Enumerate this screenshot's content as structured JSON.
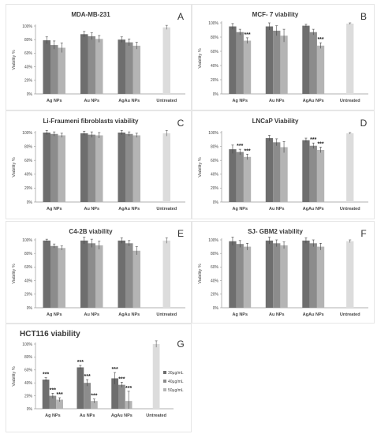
{
  "bar_colors": [
    "#6e6e6e",
    "#8c8c8c",
    "#b4b4b4"
  ],
  "untreated_color": "#dcdcdc",
  "chart_data": [
    {
      "id": "A",
      "letter": "A",
      "type": "bar",
      "title": "MDA-MB-231",
      "ylabel": "Viability %",
      "ylim": [
        0,
        100
      ],
      "yticks": [
        "0%",
        "20%",
        "40%",
        "60%",
        "80%",
        "100%"
      ],
      "categories": [
        "Ag NPs",
        "Au NPs",
        "AgAu NPs",
        "Untreated"
      ],
      "series": [
        {
          "values": [
            79,
            88,
            80,
            null
          ],
          "errors": [
            5,
            4,
            4,
            0
          ]
        },
        {
          "values": [
            72,
            85,
            76,
            null
          ],
          "errors": [
            6,
            5,
            5,
            0
          ]
        },
        {
          "values": [
            68,
            81,
            71,
            null
          ],
          "errors": [
            7,
            5,
            5,
            0
          ]
        }
      ],
      "untreated": {
        "value": 98,
        "error": 3
      },
      "stars": [],
      "grid": false,
      "legend": null
    },
    {
      "id": "B",
      "letter": "B",
      "type": "bar",
      "title": "MCF- 7 viability",
      "ylabel": "Viability %",
      "ylim": [
        0,
        100
      ],
      "yticks": [
        "0%",
        "20%",
        "40%",
        "60%",
        "80%",
        "100%"
      ],
      "categories": [
        "Ag NPs",
        "Au NPs",
        "AgAu NPs",
        "Untreated"
      ],
      "series": [
        {
          "values": [
            95,
            95,
            96,
            null
          ],
          "errors": [
            4,
            5,
            2,
            0
          ]
        },
        {
          "values": [
            87,
            89,
            87,
            null
          ],
          "errors": [
            4,
            7,
            4,
            0
          ]
        },
        {
          "values": [
            75,
            82,
            68,
            null
          ],
          "errors": [
            4,
            9,
            4,
            0
          ]
        }
      ],
      "untreated": {
        "value": 99,
        "error": 1
      },
      "stars": [
        {
          "cat": 0,
          "s": 2,
          "text": "***"
        },
        {
          "cat": 2,
          "s": 2,
          "text": "***"
        }
      ],
      "grid": false,
      "legend": null
    },
    {
      "id": "C",
      "letter": "C",
      "type": "bar",
      "title": "Li-Fraumeni fibroblasts viability",
      "ylabel": "Viability %",
      "ylim": [
        0,
        100
      ],
      "yticks": [
        "0%",
        "20%",
        "40%",
        "60%",
        "80%",
        "100%"
      ],
      "categories": [
        "Ag NPs",
        "Au NPs",
        "AgAu NPs",
        "Untreated"
      ],
      "series": [
        {
          "values": [
            100,
            99,
            100,
            null
          ],
          "errors": [
            3,
            3,
            3,
            0
          ]
        },
        {
          "values": [
            98,
            97,
            98,
            null
          ],
          "errors": [
            3,
            4,
            3,
            0
          ]
        },
        {
          "values": [
            96,
            96,
            96,
            null
          ],
          "errors": [
            3,
            4,
            3,
            0
          ]
        }
      ],
      "untreated": {
        "value": 99,
        "error": 4
      },
      "stars": [],
      "grid": false,
      "legend": null
    },
    {
      "id": "D",
      "letter": "D",
      "type": "bar",
      "title": "LNCaP Viability",
      "ylabel": "Viability %",
      "ylim": [
        0,
        100
      ],
      "yticks": [
        "0%",
        "20%",
        "40%",
        "60%",
        "80%",
        "100%"
      ],
      "categories": [
        "Ag NPs",
        "Au NPs",
        "AgAu NPs",
        "Untreated"
      ],
      "series": [
        {
          "values": [
            76,
            92,
            89,
            null
          ],
          "errors": [
            6,
            4,
            3,
            0
          ]
        },
        {
          "values": [
            72,
            86,
            81,
            null
          ],
          "errors": [
            4,
            5,
            4,
            0
          ]
        },
        {
          "values": [
            65,
            79,
            75,
            null
          ],
          "errors": [
            4,
            8,
            4,
            0
          ]
        }
      ],
      "untreated": {
        "value": 99,
        "error": 1
      },
      "stars": [
        {
          "cat": 0,
          "s": 1,
          "text": "***"
        },
        {
          "cat": 0,
          "s": 2,
          "text": "***"
        },
        {
          "cat": 2,
          "s": 1,
          "text": "***"
        },
        {
          "cat": 2,
          "s": 2,
          "text": "***"
        }
      ],
      "grid": false,
      "legend": null
    },
    {
      "id": "E",
      "letter": "E",
      "type": "bar",
      "title": "C4-2B viability",
      "ylabel": "Viability %",
      "ylim": [
        0,
        100
      ],
      "yticks": [
        "0%",
        "20%",
        "40%",
        "60%",
        "80%",
        "100%"
      ],
      "categories": [
        "Ag NPs",
        "Au NPs",
        "AgAu NPs",
        "Untreated"
      ],
      "series": [
        {
          "values": [
            99,
            99,
            99,
            null
          ],
          "errors": [
            2,
            5,
            4,
            0
          ]
        },
        {
          "values": [
            91,
            95,
            95,
            null
          ],
          "errors": [
            3,
            6,
            4,
            0
          ]
        },
        {
          "values": [
            88,
            92,
            84,
            null
          ],
          "errors": [
            3,
            6,
            6,
            0
          ]
        }
      ],
      "untreated": {
        "value": 99,
        "error": 4
      },
      "stars": [],
      "grid": false,
      "legend": null
    },
    {
      "id": "F",
      "letter": "F",
      "type": "bar",
      "title": "SJ- GBM2 viability",
      "ylabel": "Viability %",
      "ylim": [
        0,
        100
      ],
      "yticks": [
        "0%",
        "20%",
        "40%",
        "60%",
        "80%",
        "100%"
      ],
      "categories": [
        "Ag NPs",
        "Au NPs",
        "AgAu NPs",
        "Untreated"
      ],
      "series": [
        {
          "values": [
            98,
            99,
            99,
            null
          ],
          "errors": [
            6,
            5,
            4,
            0
          ]
        },
        {
          "values": [
            94,
            95,
            95,
            null
          ],
          "errors": [
            5,
            5,
            5,
            0
          ]
        },
        {
          "values": [
            90,
            92,
            90,
            null
          ],
          "errors": [
            5,
            5,
            5,
            0
          ]
        }
      ],
      "untreated": {
        "value": 98,
        "error": 2
      },
      "stars": [],
      "grid": false,
      "legend": null
    },
    {
      "id": "G",
      "letter": "G",
      "type": "bar",
      "title": "HCT116 viability",
      "ylabel": "Viability %",
      "ylim": [
        0,
        100
      ],
      "yticks": [
        "0%",
        "20%",
        "40%",
        "60%",
        "80%",
        "100%"
      ],
      "categories": [
        "Ag NPs",
        "Au NPs",
        "AgAu NPs",
        "Untreated"
      ],
      "series": [
        {
          "name": "30µg/mL",
          "values": [
            45,
            64,
            47,
            null
          ],
          "errors": [
            3,
            3,
            9,
            0
          ]
        },
        {
          "name": "40µg/mL",
          "values": [
            20,
            40,
            37,
            null
          ],
          "errors": [
            4,
            5,
            4,
            0
          ]
        },
        {
          "name": "50µg/mL",
          "values": [
            14,
            12,
            12,
            null
          ],
          "errors": [
            3,
            3,
            15,
            0
          ]
        }
      ],
      "untreated": {
        "value": 100,
        "error": 5
      },
      "stars": [
        {
          "cat": 0,
          "s": 0,
          "text": "***"
        },
        {
          "cat": 0,
          "s": 1,
          "text": "***"
        },
        {
          "cat": 0,
          "s": 2,
          "text": "***"
        },
        {
          "cat": 1,
          "s": 0,
          "text": "***"
        },
        {
          "cat": 1,
          "s": 1,
          "text": "***"
        },
        {
          "cat": 1,
          "s": 2,
          "text": "***"
        },
        {
          "cat": 2,
          "s": 0,
          "text": "***"
        },
        {
          "cat": 2,
          "s": 1,
          "text": "***"
        },
        {
          "cat": 2,
          "s": 2,
          "text": "***"
        }
      ],
      "grid": false,
      "legend": "right"
    }
  ]
}
